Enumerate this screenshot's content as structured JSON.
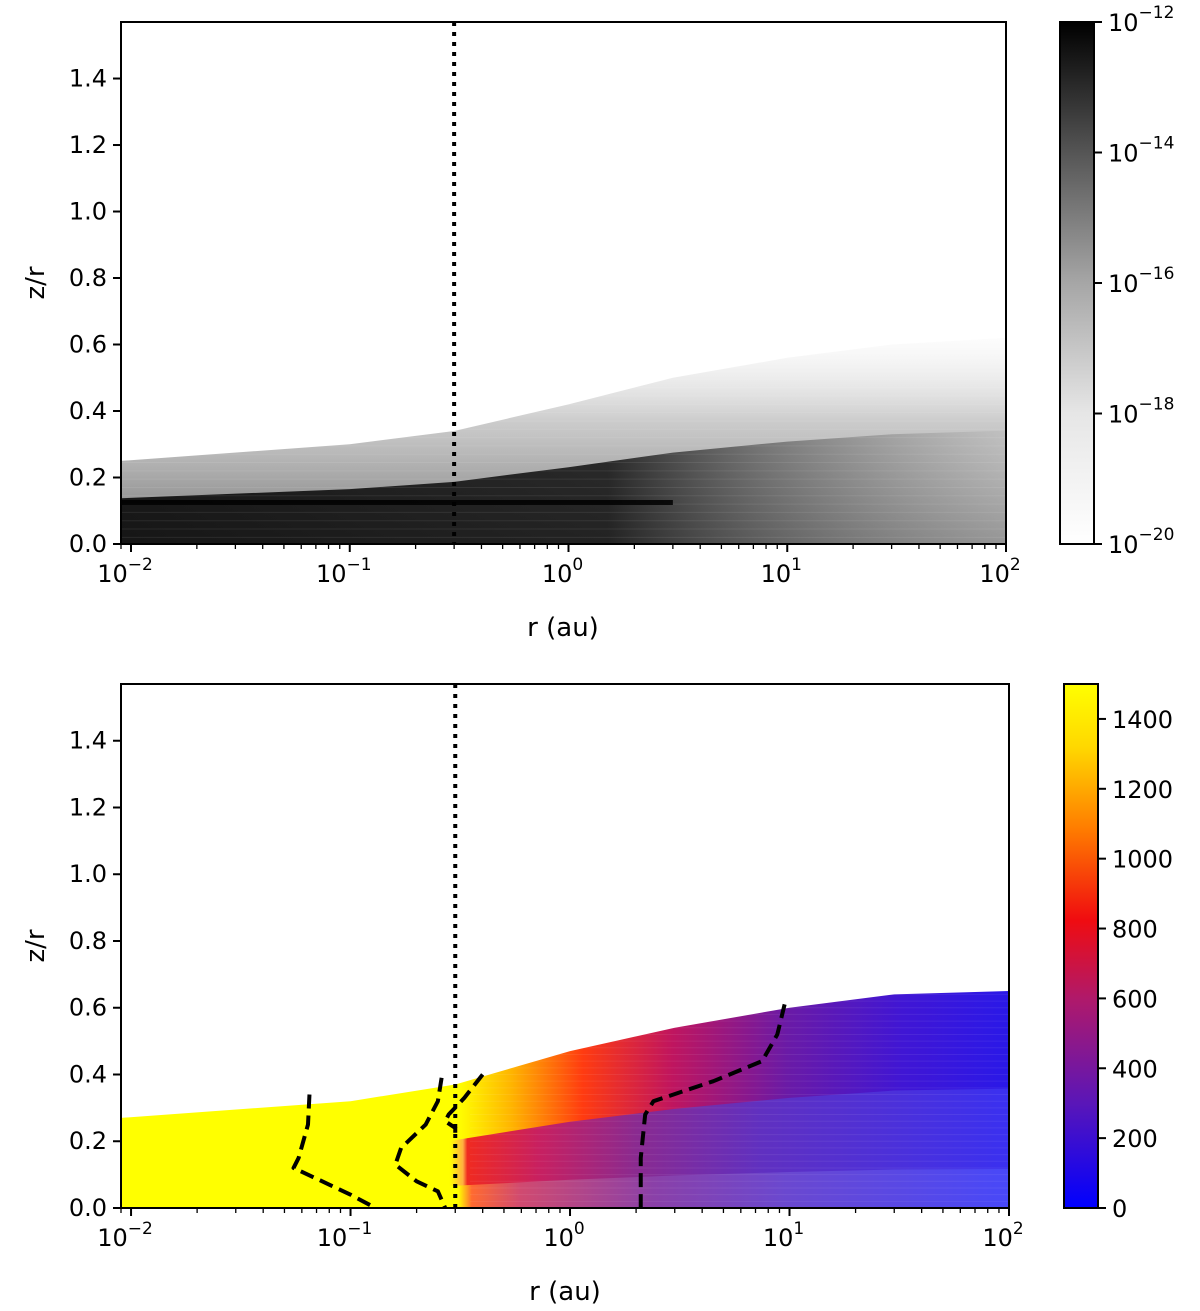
{
  "chart_data": [
    {
      "type": "heatmap",
      "panel": "top",
      "xlabel": "r (au)",
      "ylabel": "z/r",
      "xscale": "log",
      "xlim": [
        0.009,
        100
      ],
      "ylim": [
        0.0,
        1.57
      ],
      "x_ticks": [
        {
          "value": 0.01,
          "base": "10",
          "exp": "−2"
        },
        {
          "value": 0.1,
          "base": "10",
          "exp": "−1"
        },
        {
          "value": 1,
          "base": "10",
          "exp": "0"
        },
        {
          "value": 10,
          "base": "10",
          "exp": "1"
        },
        {
          "value": 100,
          "base": "10",
          "exp": "2"
        }
      ],
      "y_ticks": [
        "0.0",
        "0.2",
        "0.4",
        "0.6",
        "0.8",
        "1.0",
        "1.2",
        "1.4"
      ],
      "colormap": "gray_r",
      "colorbar": {
        "scale": "log",
        "range": [
          1e-20,
          1e-12
        ],
        "ticks": [
          {
            "base": "10",
            "exp": "−12"
          },
          {
            "base": "10",
            "exp": "−14"
          },
          {
            "base": "10",
            "exp": "−16"
          },
          {
            "base": "10",
            "exp": "−18"
          },
          {
            "base": "10",
            "exp": "−20"
          }
        ]
      },
      "dotted_line_r": 0.3,
      "surface_z_over_r": {
        "r": [
          0.009,
          0.1,
          0.3,
          1,
          3,
          10,
          30,
          100
        ],
        "z": [
          0.25,
          0.3,
          0.34,
          0.42,
          0.5,
          0.56,
          0.6,
          0.62
        ]
      }
    },
    {
      "type": "heatmap",
      "panel": "bottom",
      "xlabel": "r (au)",
      "ylabel": "z/r",
      "xscale": "log",
      "xlim": [
        0.009,
        100
      ],
      "ylim": [
        0.0,
        1.57
      ],
      "x_ticks": [
        {
          "value": 0.01,
          "base": "10",
          "exp": "−2"
        },
        {
          "value": 0.1,
          "base": "10",
          "exp": "−1"
        },
        {
          "value": 1,
          "base": "10",
          "exp": "0"
        },
        {
          "value": 10,
          "base": "10",
          "exp": "1"
        },
        {
          "value": 100,
          "base": "10",
          "exp": "2"
        }
      ],
      "y_ticks": [
        "0.0",
        "0.2",
        "0.4",
        "0.6",
        "0.8",
        "1.0",
        "1.2",
        "1.4"
      ],
      "colormap": "blue-purple-red-yellow",
      "colorbar": {
        "scale": "linear",
        "range": [
          0,
          1500
        ],
        "ticks": [
          "0",
          "200",
          "400",
          "600",
          "800",
          "1000",
          "1200",
          "1400"
        ]
      },
      "dotted_line_r": 0.3,
      "surface_z_over_r": {
        "r": [
          0.009,
          0.1,
          0.3,
          1,
          3,
          10,
          30,
          100
        ],
        "z": [
          0.27,
          0.32,
          0.37,
          0.47,
          0.54,
          0.6,
          0.64,
          0.65
        ]
      },
      "dashed_contours": [
        {
          "r": [
            0.065,
            0.064,
            0.058,
            0.055,
            0.08,
            0.1,
            0.13
          ],
          "z": [
            0.34,
            0.25,
            0.15,
            0.12,
            0.07,
            0.04,
            0.0
          ]
        },
        {
          "r": [
            0.26,
            0.25,
            0.22,
            0.17,
            0.16,
            0.2,
            0.25,
            0.27
          ],
          "z": [
            0.39,
            0.32,
            0.25,
            0.18,
            0.13,
            0.08,
            0.05,
            0.0
          ]
        },
        {
          "r": [
            0.4,
            0.33,
            0.28,
            0.27,
            0.3,
            0.3
          ],
          "z": [
            0.4,
            0.33,
            0.28,
            0.26,
            0.24,
            0.22
          ]
        },
        {
          "r": [
            9.5,
            8.8,
            7.5,
            4.5,
            2.4,
            2.2,
            2.1,
            2.1
          ],
          "z": [
            0.61,
            0.52,
            0.44,
            0.38,
            0.32,
            0.28,
            0.15,
            0.0
          ]
        }
      ]
    }
  ]
}
